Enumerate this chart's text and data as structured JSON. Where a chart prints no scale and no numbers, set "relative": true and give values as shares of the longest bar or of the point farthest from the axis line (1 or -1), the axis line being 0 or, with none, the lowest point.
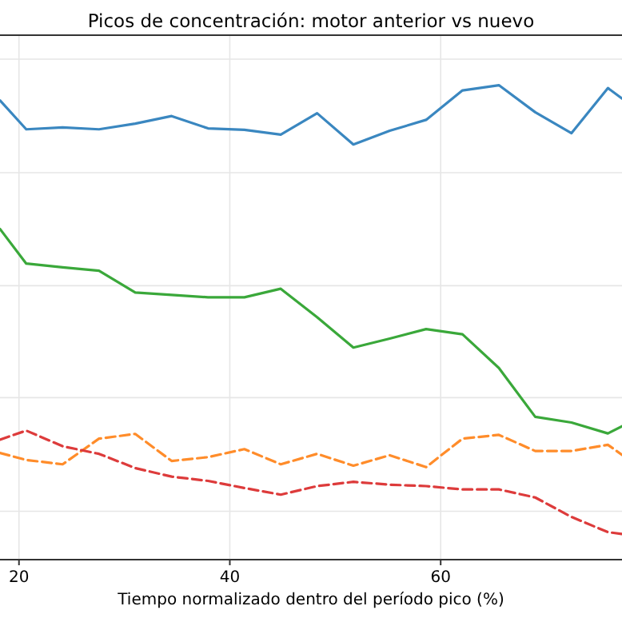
{
  "chart_data": {
    "type": "line",
    "title": "Picos de concentración: motor anterior vs nuevo",
    "xlabel": "Tiempo normalizado dentro del período pico (%)",
    "relative": true,
    "grid": true,
    "marker": "none",
    "x": [
      18.2,
      20.69,
      24.14,
      27.59,
      31.03,
      34.48,
      37.93,
      41.38,
      44.83,
      48.28,
      51.72,
      55.17,
      58.62,
      62.07,
      65.52,
      68.97,
      72.41,
      75.86,
      77.2
    ],
    "xlim": [
      18.2,
      77.2
    ],
    "xticks": [
      20,
      40,
      60
    ],
    "series": [
      {
        "color": "#3a87c0",
        "line_style": "solid",
        "values": [
          0.968,
          0.907,
          0.911,
          0.907,
          0.919,
          0.935,
          0.909,
          0.906,
          0.896,
          0.941,
          0.875,
          0.904,
          0.927,
          0.989,
          1,
          0.943,
          0.899,
          0.994,
          0.972
        ]
      },
      {
        "color": "#3aa83a",
        "line_style": "solid",
        "values": [
          0.697,
          0.624,
          0.616,
          0.609,
          0.563,
          0.558,
          0.553,
          0.553,
          0.571,
          0.511,
          0.447,
          0.466,
          0.486,
          0.475,
          0.404,
          0.301,
          0.289,
          0.266,
          0.281
        ]
      },
      {
        "color": "#ff8c2a",
        "line_style": "dashed",
        "values": [
          0.225,
          0.21,
          0.201,
          0.255,
          0.265,
          0.208,
          0.216,
          0.233,
          0.201,
          0.223,
          0.198,
          0.22,
          0.195,
          0.255,
          0.263,
          0.229,
          0.229,
          0.242,
          0.221
        ]
      },
      {
        "color": "#dd3b3b",
        "line_style": "dashed",
        "values": [
          0.253,
          0.272,
          0.239,
          0.223,
          0.193,
          0.175,
          0.166,
          0.151,
          0.137,
          0.155,
          0.164,
          0.158,
          0.155,
          0.148,
          0.148,
          0.131,
          0.09,
          0.058,
          0.054
        ]
      }
    ]
  }
}
